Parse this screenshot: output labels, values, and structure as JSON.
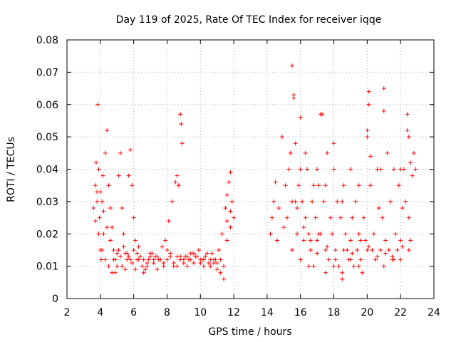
{
  "chart_data": {
    "type": "scatter",
    "title": "Day 119 of 2025, Rate Of TEC Index for receiver iqqe",
    "xlabel": "GPS time / hours",
    "ylabel": "ROTI / TECUs",
    "xlim": [
      2,
      24
    ],
    "ylim": [
      0,
      0.08
    ],
    "xticks": [
      "2",
      "4",
      "6",
      "8",
      "10",
      "12",
      "14",
      "16",
      "18",
      "20",
      "22",
      "24"
    ],
    "yticks": [
      "0",
      "0.01",
      "0.02",
      "0.03",
      "0.04",
      "0.05",
      "0.06",
      "0.07",
      "0.08"
    ],
    "grid": true,
    "marker": "+",
    "color": "#ff0000",
    "series": [
      {
        "x": [
          3.6,
          3.7,
          3.75,
          3.8,
          3.85,
          3.9,
          3.95,
          4.0,
          4.05,
          4.1,
          4.15,
          4.2,
          4.3,
          4.4,
          4.5,
          4.6,
          4.7,
          4.8,
          4.9,
          5.0,
          5.1,
          5.2,
          5.3,
          5.4,
          5.5,
          5.6,
          5.7,
          5.8,
          5.9,
          6.0,
          6.1,
          6.2,
          6.3,
          6.5,
          6.7,
          6.9,
          7.1,
          7.3,
          7.5,
          7.7,
          7.9,
          8.1,
          8.3,
          8.5,
          8.6,
          8.7,
          8.8,
          8.85,
          8.9,
          9.1,
          9.3,
          9.5,
          9.7,
          9.9,
          10.1,
          10.3,
          10.5,
          10.7,
          10.9,
          11.1,
          11.3,
          11.5,
          11.6,
          11.7,
          11.8,
          11.9,
          12.0,
          3.7,
          3.9,
          4.1,
          4.3,
          4.5,
          4.7,
          4.9,
          5.1,
          5.3,
          5.5,
          5.7,
          5.9,
          6.1,
          6.3,
          6.6,
          6.8,
          7.0,
          7.2,
          7.4,
          7.6,
          7.8,
          8.0,
          8.2,
          8.4,
          8.6,
          8.8,
          9.0,
          9.2,
          9.4,
          9.6,
          9.8,
          10.0,
          10.2,
          10.4,
          10.6,
          10.8,
          11.0,
          11.2,
          11.4,
          11.6,
          11.8,
          3.8,
          4.0,
          4.2,
          4.4,
          4.6,
          4.8,
          5.0,
          5.2,
          5.4,
          5.6,
          5.8,
          6.0,
          6.2,
          6.4,
          6.6,
          6.8,
          7.0,
          7.2,
          7.4,
          7.6,
          7.8,
          8.0,
          8.2,
          8.4,
          8.6,
          8.8,
          9.0,
          9.2,
          9.4,
          9.6,
          9.8,
          10.0,
          10.2,
          10.4,
          10.6,
          10.8,
          11.0,
          11.2,
          11.4,
          11.6,
          11.8,
          14.2,
          14.3,
          14.4,
          14.5,
          14.7,
          14.9,
          15.1,
          15.3,
          15.4,
          15.5,
          15.6,
          15.7,
          15.8,
          15.9,
          16.0,
          16.1,
          16.2,
          16.3,
          16.4,
          16.5,
          16.6,
          16.7,
          16.8,
          16.9,
          17.0,
          17.1,
          17.2,
          17.3,
          17.4,
          17.5,
          17.6,
          17.7,
          17.8,
          17.9,
          18.0,
          18.1,
          18.2,
          18.3,
          18.4,
          18.5,
          18.6,
          18.7,
          18.8,
          18.9,
          19.0,
          19.1,
          19.2,
          19.3,
          19.4,
          19.5,
          19.6,
          19.7,
          19.8,
          19.9,
          20.0,
          20.1,
          20.2,
          20.3,
          20.4,
          20.5,
          20.6,
          20.7,
          20.8,
          20.9,
          21.0,
          21.1,
          21.2,
          21.3,
          21.4,
          21.5,
          21.6,
          21.7,
          21.8,
          21.9,
          22.0,
          22.1,
          22.2,
          22.3,
          22.4,
          22.5,
          22.6,
          22.7,
          22.8,
          22.9,
          15.5,
          15.6,
          15.7,
          16.0,
          16.3,
          16.8,
          17.0,
          17.2,
          17.5,
          18.0,
          18.5,
          19.0,
          19.5,
          20.0,
          20.1,
          20.2,
          20.8,
          21.0,
          22.0,
          22.4,
          22.5,
          14.6,
          15.0,
          15.5,
          16.0,
          16.5,
          17.0,
          17.5,
          18.0,
          18.5,
          19.0,
          19.5,
          20.0,
          20.5,
          21.0,
          21.5,
          22.0,
          22.5,
          15.2,
          15.8,
          16.2,
          16.6,
          17.1,
          17.6,
          18.1,
          18.6,
          19.1,
          19.6,
          20.1,
          20.6,
          21.1,
          21.6,
          22.1,
          22.6
        ],
        "y": [
          0.028,
          0.035,
          0.042,
          0.033,
          0.06,
          0.04,
          0.025,
          0.015,
          0.012,
          0.03,
          0.038,
          0.02,
          0.045,
          0.052,
          0.035,
          0.028,
          0.022,
          0.012,
          0.008,
          0.01,
          0.038,
          0.045,
          0.028,
          0.02,
          0.014,
          0.012,
          0.038,
          0.046,
          0.035,
          0.025,
          0.018,
          0.012,
          0.016,
          0.01,
          0.009,
          0.012,
          0.014,
          0.013,
          0.012,
          0.016,
          0.018,
          0.024,
          0.03,
          0.036,
          0.038,
          0.035,
          0.057,
          0.054,
          0.048,
          0.013,
          0.012,
          0.014,
          0.013,
          0.015,
          0.012,
          0.013,
          0.011,
          0.014,
          0.012,
          0.015,
          0.02,
          0.028,
          0.032,
          0.036,
          0.039,
          0.03,
          0.025,
          0.024,
          0.02,
          0.015,
          0.012,
          0.01,
          0.008,
          0.012,
          0.015,
          0.01,
          0.009,
          0.013,
          0.011,
          0.009,
          0.012,
          0.008,
          0.01,
          0.013,
          0.011,
          0.009,
          0.012,
          0.01,
          0.015,
          0.013,
          0.011,
          0.01,
          0.013,
          0.012,
          0.01,
          0.014,
          0.011,
          0.013,
          0.012,
          0.01,
          0.014,
          0.012,
          0.011,
          0.009,
          0.012,
          0.01,
          0.018,
          0.022,
          0.03,
          0.033,
          0.027,
          0.022,
          0.018,
          0.015,
          0.014,
          0.013,
          0.016,
          0.014,
          0.012,
          0.015,
          0.014,
          0.013,
          0.012,
          0.011,
          0.014,
          0.012,
          0.013,
          0.012,
          0.011,
          0.012,
          0.014,
          0.01,
          0.013,
          0.012,
          0.011,
          0.013,
          0.012,
          0.014,
          0.013,
          0.011,
          0.012,
          0.014,
          0.01,
          0.012,
          0.011,
          0.008,
          0.006,
          0.024,
          0.027,
          0.02,
          0.025,
          0.03,
          0.036,
          0.028,
          0.05,
          0.035,
          0.04,
          0.045,
          0.03,
          0.062,
          0.048,
          0.02,
          0.035,
          0.056,
          0.03,
          0.018,
          0.025,
          0.04,
          0.02,
          0.015,
          0.03,
          0.01,
          0.025,
          0.018,
          0.035,
          0.02,
          0.057,
          0.03,
          0.015,
          0.045,
          0.012,
          0.025,
          0.02,
          0.04,
          0.015,
          0.03,
          0.01,
          0.025,
          0.008,
          0.035,
          0.02,
          0.015,
          0.012,
          0.018,
          0.025,
          0.01,
          0.03,
          0.015,
          0.02,
          0.012,
          0.008,
          0.025,
          0.018,
          0.05,
          0.06,
          0.035,
          0.015,
          0.02,
          0.012,
          0.04,
          0.028,
          0.015,
          0.025,
          0.058,
          0.018,
          0.045,
          0.015,
          0.03,
          0.012,
          0.04,
          0.02,
          0.015,
          0.035,
          0.018,
          0.028,
          0.04,
          0.03,
          0.052,
          0.025,
          0.042,
          0.038,
          0.045,
          0.04,
          0.072,
          0.063,
          0.03,
          0.04,
          0.045,
          0.035,
          0.04,
          0.057,
          0.035,
          0.048,
          0.03,
          0.04,
          0.035,
          0.052,
          0.064,
          0.044,
          0.04,
          0.065,
          0.04,
          0.057,
          0.05,
          0.018,
          0.022,
          0.015,
          0.012,
          0.01,
          0.014,
          0.008,
          0.01,
          0.006,
          0.012,
          0.01,
          0.015,
          0.012,
          0.01,
          0.013,
          0.012,
          0.015,
          0.025,
          0.028,
          0.022,
          0.018,
          0.02,
          0.016,
          0.012,
          0.015,
          0.014,
          0.018,
          0.016,
          0.013,
          0.014,
          0.012,
          0.016,
          0.018
        ]
      }
    ]
  }
}
